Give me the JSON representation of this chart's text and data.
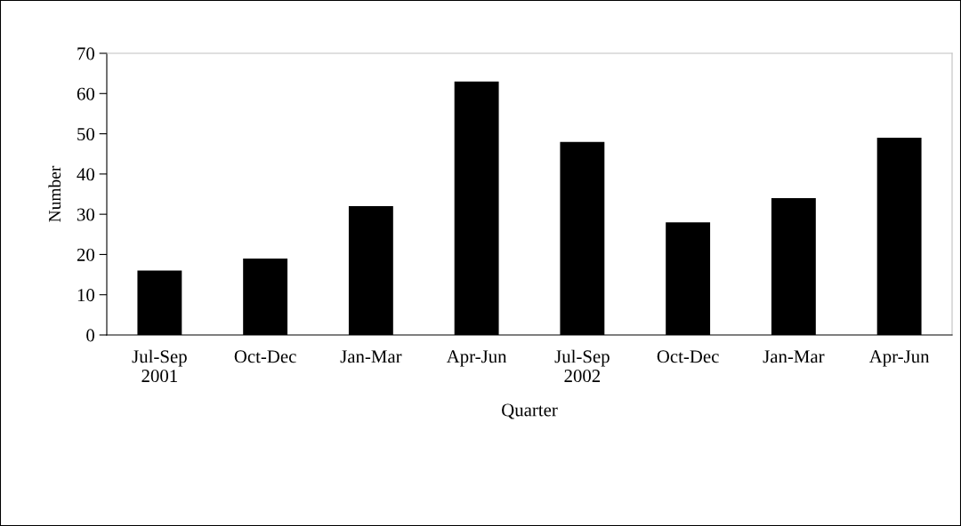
{
  "chart_data": {
    "type": "bar",
    "xlabel": "Quarter",
    "ylabel": "Number",
    "categories": [
      "Jul-Sep\n2001",
      "Oct-Dec",
      "Jan-Mar",
      "Apr-Jun",
      "Jul-Sep\n2002",
      "Oct-Dec",
      "Jan-Mar",
      "Apr-Jun"
    ],
    "values": [
      16,
      19,
      32,
      63,
      48,
      28,
      34,
      49
    ],
    "color": "#000000",
    "ylim": [
      0,
      70
    ],
    "yticks": [
      0,
      10,
      20,
      30,
      40,
      50,
      60,
      70
    ],
    "grid": false,
    "legend": false
  }
}
